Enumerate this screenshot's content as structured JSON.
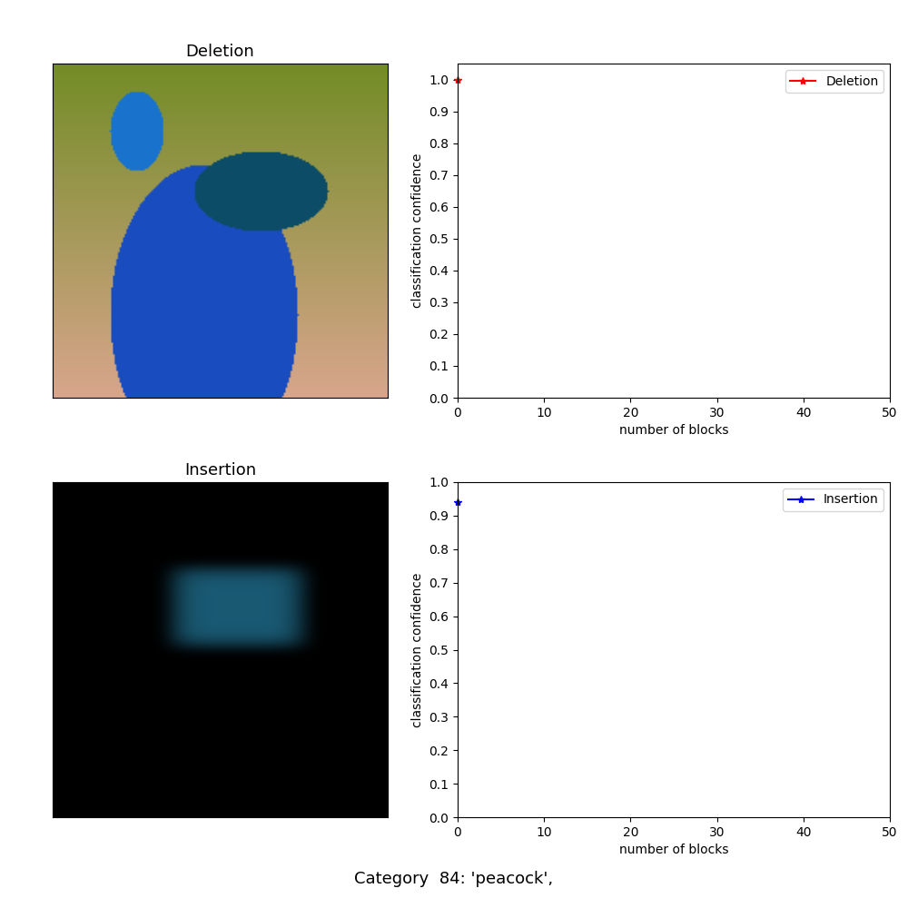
{
  "chart_data": [
    {
      "type": "image",
      "title": "Deletion"
    },
    {
      "type": "line",
      "xlabel": "number of blocks",
      "ylabel": "classification confidence",
      "x": [
        0
      ],
      "series": [
        {
          "name": "Deletion",
          "color": "#ff0000",
          "marker": "*",
          "line_style": "solid",
          "values": [
            1.0
          ]
        }
      ],
      "xlim": [
        0,
        50
      ],
      "xticks": [
        0,
        10,
        20,
        30,
        40,
        50
      ],
      "ylim": [
        0,
        1.05
      ],
      "yticks": [
        {
          "value": 0,
          "label": "0.0"
        },
        0.1,
        0.2,
        0.3,
        0.4,
        0.5,
        0.6,
        0.7,
        0.8,
        0.9,
        {
          "value": 1,
          "label": "1.0"
        }
      ],
      "legend": "upper right"
    },
    {
      "type": "image",
      "title": "Insertion"
    },
    {
      "type": "line",
      "xlabel": "number of blocks",
      "ylabel": "classification confidence",
      "x": [
        0
      ],
      "series": [
        {
          "name": "Insertion",
          "color": "#0000ff",
          "marker": "*",
          "line_style": "solid",
          "values": [
            0.94
          ]
        }
      ],
      "xlim": [
        0,
        50
      ],
      "xticks": [
        0,
        10,
        20,
        30,
        40,
        50
      ],
      "ylim": [
        0,
        1
      ],
      "yticks": [
        {
          "value": 0,
          "label": "0.0"
        },
        0.1,
        0.2,
        0.3,
        0.4,
        0.5,
        0.6,
        0.7,
        0.8,
        0.9,
        {
          "value": 1,
          "label": "1.0"
        }
      ],
      "legend": "upper right"
    }
  ],
  "caption": "Category  84: 'peacock',"
}
